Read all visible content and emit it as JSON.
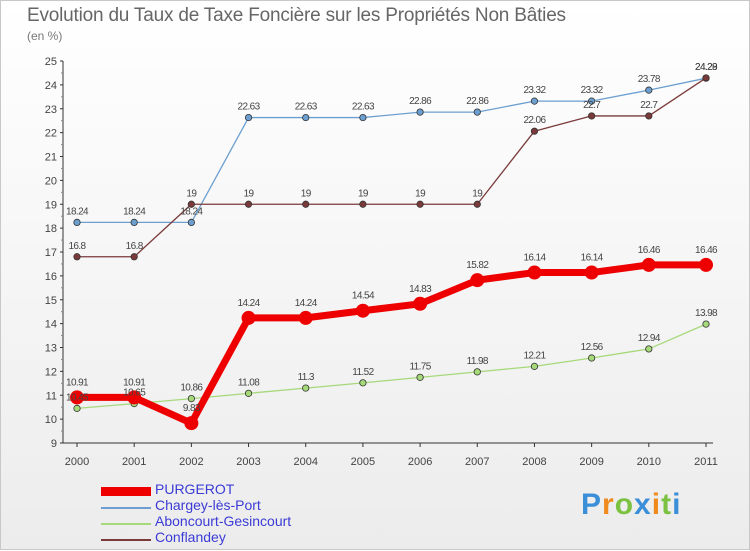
{
  "title": "Evolution du Taux de Taxe Foncière sur les Propriétés Non Bâties",
  "subtitle": "(en %)",
  "chart_data": {
    "type": "line",
    "title": "Evolution du Taux de Taxe Foncière sur les Propriétés Non Bâties",
    "ylabel": "(en %)",
    "xlabel": "",
    "ylim": [
      9,
      25
    ],
    "yticks": [
      9,
      10,
      11,
      12,
      13,
      14,
      15,
      16,
      17,
      18,
      19,
      20,
      21,
      22,
      23,
      24,
      25
    ],
    "categories": [
      "2000",
      "2001",
      "2002",
      "2003",
      "2004",
      "2005",
      "2006",
      "2007",
      "2008",
      "2009",
      "2010",
      "2011"
    ],
    "series": [
      {
        "name": "PURGEROT",
        "color": "#ee0000",
        "values": [
          10.91,
          10.91,
          9.83,
          14.24,
          14.24,
          14.54,
          14.83,
          15.82,
          16.14,
          16.14,
          16.46,
          16.46
        ],
        "labels": [
          "10.91",
          "10.91",
          "9.83",
          "14.24",
          "14.24",
          "14.54",
          "14.83",
          "15.82",
          "16.14",
          "16.14",
          "16.46",
          "16.46"
        ]
      },
      {
        "name": "Chargey-lès-Port",
        "color": "#6c9fd0",
        "values": [
          18.24,
          18.24,
          18.24,
          22.63,
          22.63,
          22.63,
          22.86,
          22.86,
          23.32,
          23.32,
          23.78,
          24.28
        ],
        "labels": [
          "18.24",
          "18.24",
          "18.24",
          "22.63",
          "22.63",
          "22.63",
          "22.86",
          "22.86",
          "23.32",
          "23.32",
          "23.78",
          "24.28"
        ]
      },
      {
        "name": "Aboncourt-Gesincourt",
        "color": "#a6d97a",
        "values": [
          10.45,
          10.65,
          10.86,
          11.08,
          11.3,
          11.52,
          11.75,
          11.98,
          12.21,
          12.56,
          12.94,
          13.98
        ],
        "labels": [
          "10.45",
          "10.65",
          "10.86",
          "11.08",
          "11.3",
          "11.52",
          "11.75",
          "11.98",
          "12.21",
          "12.56",
          "12.94",
          "13.98"
        ]
      },
      {
        "name": "Conflandey",
        "color": "#7a3a3a",
        "values": [
          16.8,
          16.8,
          19,
          19,
          19,
          19,
          19,
          19,
          22.06,
          22.7,
          22.7,
          24.29
        ],
        "labels": [
          "16.8",
          "16.8",
          "19",
          "19",
          "19",
          "19",
          "19",
          "19",
          "22.06",
          "22.7",
          "22.7",
          "24.29"
        ]
      }
    ],
    "legend": [
      "PURGEROT",
      "Chargey-lès-Port",
      "Aboncourt-Gesincourt",
      "Conflandey"
    ],
    "legend_position": "bottom-left",
    "grid": false
  },
  "logo": {
    "letters": [
      "P",
      "r",
      "o",
      "x",
      "i",
      "t",
      "i"
    ],
    "colors": [
      "#3a8fd8",
      "#f08a1c",
      "#7cc242",
      "#3a8fd8",
      "#f08a1c",
      "#7cc242",
      "#3a8fd8"
    ]
  }
}
